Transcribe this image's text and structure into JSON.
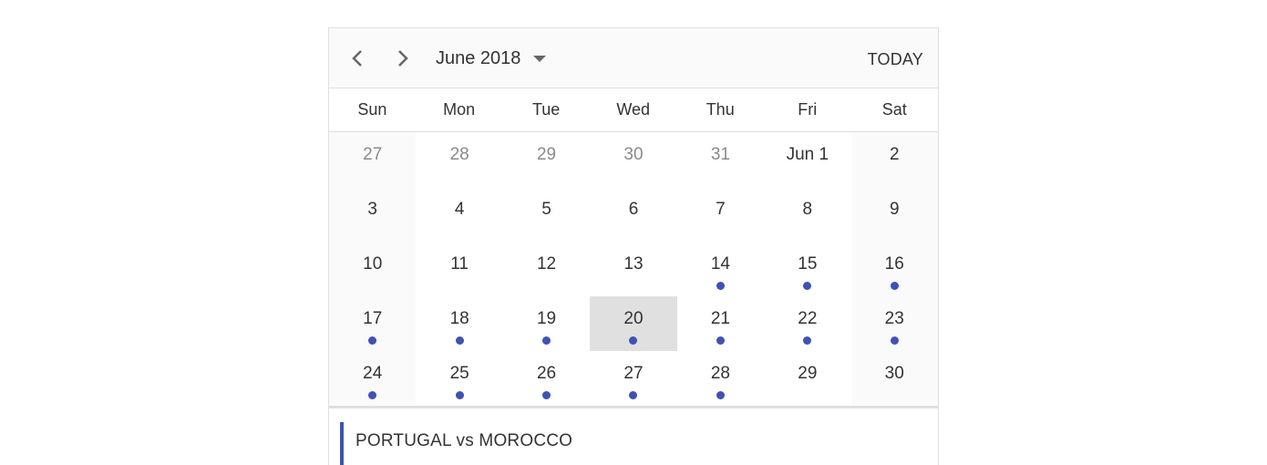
{
  "header": {
    "month_label": "June 2018",
    "today_label": "TODAY",
    "prev_icon": "chevron-left-icon",
    "next_icon": "chevron-right-icon",
    "dropdown_icon": "caret-down-icon"
  },
  "weekdays": [
    "Sun",
    "Mon",
    "Tue",
    "Wed",
    "Thu",
    "Fri",
    "Sat"
  ],
  "weeks": [
    [
      {
        "label": "27",
        "other": true,
        "event": false
      },
      {
        "label": "28",
        "other": true,
        "event": false
      },
      {
        "label": "29",
        "other": true,
        "event": false
      },
      {
        "label": "30",
        "other": true,
        "event": false
      },
      {
        "label": "31",
        "other": true,
        "event": false
      },
      {
        "label": "Jun 1",
        "other": false,
        "event": false
      },
      {
        "label": "2",
        "other": false,
        "event": false
      }
    ],
    [
      {
        "label": "3",
        "other": false,
        "event": false
      },
      {
        "label": "4",
        "other": false,
        "event": false
      },
      {
        "label": "5",
        "other": false,
        "event": false
      },
      {
        "label": "6",
        "other": false,
        "event": false
      },
      {
        "label": "7",
        "other": false,
        "event": false
      },
      {
        "label": "8",
        "other": false,
        "event": false
      },
      {
        "label": "9",
        "other": false,
        "event": false
      }
    ],
    [
      {
        "label": "10",
        "other": false,
        "event": false
      },
      {
        "label": "11",
        "other": false,
        "event": false
      },
      {
        "label": "12",
        "other": false,
        "event": false
      },
      {
        "label": "13",
        "other": false,
        "event": false
      },
      {
        "label": "14",
        "other": false,
        "event": true
      },
      {
        "label": "15",
        "other": false,
        "event": true
      },
      {
        "label": "16",
        "other": false,
        "event": true
      }
    ],
    [
      {
        "label": "17",
        "other": false,
        "event": true
      },
      {
        "label": "18",
        "other": false,
        "event": true
      },
      {
        "label": "19",
        "other": false,
        "event": true
      },
      {
        "label": "20",
        "other": false,
        "event": true,
        "selected": true
      },
      {
        "label": "21",
        "other": false,
        "event": true
      },
      {
        "label": "22",
        "other": false,
        "event": true
      },
      {
        "label": "23",
        "other": false,
        "event": true
      }
    ],
    [
      {
        "label": "24",
        "other": false,
        "event": true
      },
      {
        "label": "25",
        "other": false,
        "event": true
      },
      {
        "label": "26",
        "other": false,
        "event": true
      },
      {
        "label": "27",
        "other": false,
        "event": true
      },
      {
        "label": "28",
        "other": false,
        "event": true
      },
      {
        "label": "29",
        "other": false,
        "event": false
      },
      {
        "label": "30",
        "other": false,
        "event": false
      }
    ]
  ],
  "events": [
    {
      "title": "PORTUGAL vs MOROCCO"
    }
  ],
  "colors": {
    "accent": "#3f51b5",
    "selected_bg": "#e0e0e0",
    "weekend_bg": "#fafafa"
  }
}
